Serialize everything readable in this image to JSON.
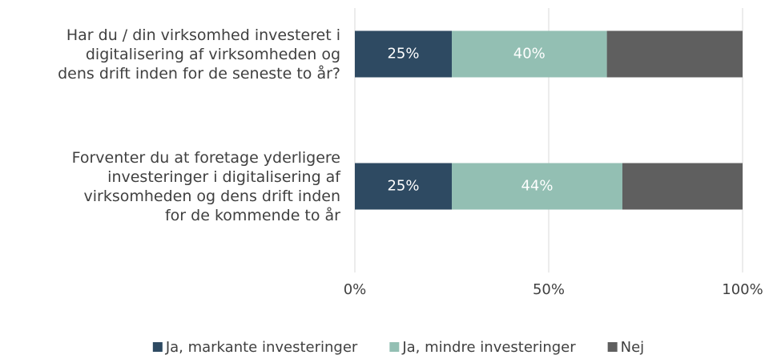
{
  "chart_data": {
    "type": "bar",
    "orientation": "horizontal",
    "stacked": true,
    "categories": [
      "Har du / din virksomhed investeret i\ndigitalisering af virksomheden og\ndens drift inden for de seneste to år?",
      "Forventer du at foretage yderligere\ninvesteringer i digitalisering af\nvirksomheden og dens drift inden\nfor de kommende to år"
    ],
    "series": [
      {
        "name": "Ja, markante investeringer",
        "color": "#2e4a62",
        "values": [
          25,
          25
        ],
        "value_labels": [
          "25%",
          "25%"
        ]
      },
      {
        "name": "Ja, mindre investeringer",
        "color": "#93bfb3",
        "values": [
          40,
          44
        ],
        "value_labels": [
          "40%",
          "44%"
        ]
      },
      {
        "name": "Nej",
        "color": "#5f5f5f",
        "values": [
          35,
          31
        ]
      }
    ],
    "xlim": [
      0,
      100
    ],
    "xticks": [
      {
        "value": 0,
        "label": "0%"
      },
      {
        "value": 50,
        "label": "50%"
      },
      {
        "value": 100,
        "label": "100%"
      }
    ],
    "grid": true,
    "legend": "bottom"
  }
}
